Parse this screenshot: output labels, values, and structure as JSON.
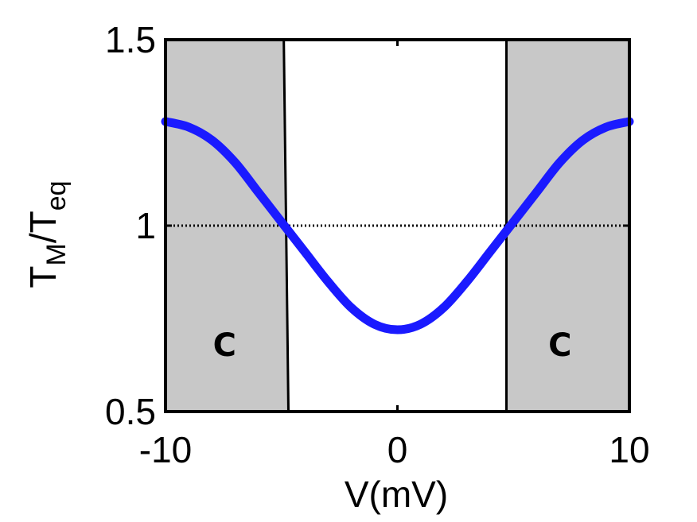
{
  "chart_data": {
    "type": "line",
    "xlabel": "V(mV)",
    "ylabel": {
      "main": "T",
      "sub_m": "M",
      "slash": "/T",
      "sub_eq": "eq"
    },
    "xlim": [
      -10,
      10
    ],
    "ylim": [
      0.5,
      1.5
    ],
    "xticks": [
      -10,
      0,
      10
    ],
    "xtick_labels": [
      "-10",
      "0",
      "10"
    ],
    "yticks": [
      0.5,
      1,
      1.5
    ],
    "ytick_labels": [
      "0.5",
      "1",
      "1.5"
    ],
    "grid": false,
    "series": [
      {
        "color": "#1a1aff",
        "x": [
          -10,
          -9,
          -8,
          -7,
          -6,
          -5,
          -4,
          -3,
          -2,
          -1,
          0,
          1,
          2,
          3,
          4,
          5,
          6,
          7,
          8,
          9,
          10
        ],
        "y": [
          1.28,
          1.265,
          1.23,
          1.17,
          1.09,
          1.01,
          0.93,
          0.85,
          0.78,
          0.735,
          0.72,
          0.735,
          0.78,
          0.85,
          0.93,
          1.01,
          1.09,
          1.17,
          1.23,
          1.265,
          1.28
        ]
      }
    ],
    "reference_line": {
      "y": 1,
      "style": "dotted",
      "color": "#000000"
    },
    "vertical_boundaries": [
      {
        "x_top": -4.9,
        "x_bottom": -4.7
      },
      {
        "x_top": 4.7,
        "x_bottom": 4.7
      }
    ],
    "shaded_regions": [
      {
        "x_from": -10,
        "label": "C"
      },
      {
        "x_to": 10,
        "label": "C"
      }
    ],
    "shade_color": "#c8c8c8",
    "line_color": "#1a1aff"
  }
}
